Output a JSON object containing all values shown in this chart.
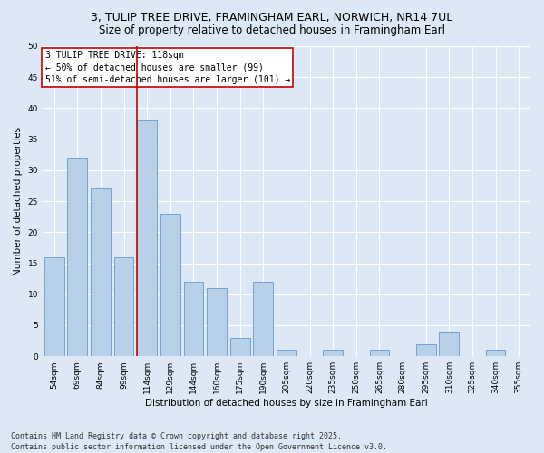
{
  "title": "3, TULIP TREE DRIVE, FRAMINGHAM EARL, NORWICH, NR14 7UL",
  "subtitle": "Size of property relative to detached houses in Framingham Earl",
  "xlabel": "Distribution of detached houses by size in Framingham Earl",
  "ylabel": "Number of detached properties",
  "bar_color": "#b8d0e8",
  "bar_edge_color": "#6699cc",
  "highlight_bar_index": 4,
  "highlight_line_color": "#cc0000",
  "categories": [
    "54sqm",
    "69sqm",
    "84sqm",
    "99sqm",
    "114sqm",
    "129sqm",
    "144sqm",
    "160sqm",
    "175sqm",
    "190sqm",
    "205sqm",
    "220sqm",
    "235sqm",
    "250sqm",
    "265sqm",
    "280sqm",
    "295sqm",
    "310sqm",
    "325sqm",
    "340sqm",
    "355sqm"
  ],
  "values": [
    16,
    32,
    27,
    16,
    38,
    23,
    12,
    11,
    3,
    12,
    1,
    0,
    1,
    0,
    1,
    0,
    2,
    4,
    0,
    1,
    0
  ],
  "ylim": [
    0,
    50
  ],
  "yticks": [
    0,
    5,
    10,
    15,
    20,
    25,
    30,
    35,
    40,
    45,
    50
  ],
  "annotation_text": "3 TULIP TREE DRIVE: 118sqm\n← 50% of detached houses are smaller (99)\n51% of semi-detached houses are larger (101) →",
  "annotation_box_color": "#ffffff",
  "annotation_box_edge": "#cc0000",
  "footnote": "Contains HM Land Registry data © Crown copyright and database right 2025.\nContains public sector information licensed under the Open Government Licence v3.0.",
  "background_color": "#dce8f5",
  "plot_background_color": "#dce8f5",
  "grid_color": "#ffffff",
  "title_fontsize": 9,
  "subtitle_fontsize": 8.5,
  "axis_label_fontsize": 7.5,
  "tick_fontsize": 6.5,
  "annotation_fontsize": 7,
  "footnote_fontsize": 6
}
